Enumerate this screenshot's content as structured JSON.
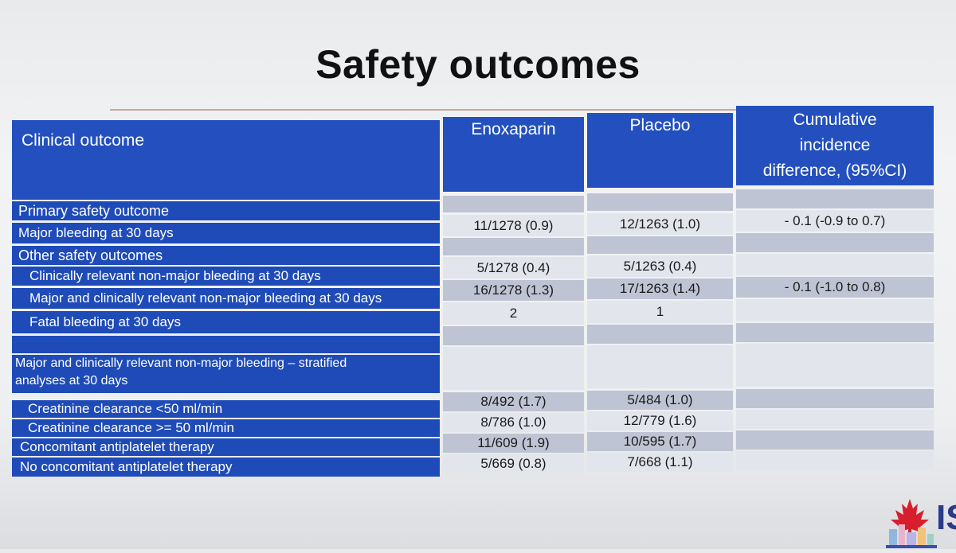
{
  "slide": {
    "title": "Safety outcomes"
  },
  "table": {
    "headers": {
      "outcome": "Clinical outcome",
      "enox": "Enoxaparin",
      "placebo": "Placebo",
      "diff_l1": "Cumulative",
      "diff_l2": "incidence",
      "diff_l3": "difference, (95%CI)"
    },
    "rows": [
      {
        "label": "Primary safety outcome",
        "enox": "",
        "placebo": "",
        "diff": ""
      },
      {
        "label": "Major bleeding at 30 days",
        "enox": "11/1278 (0.9)",
        "placebo": "12/1263 (1.0)",
        "diff": "- 0.1 (-0.9 to 0.7)"
      },
      {
        "label": "Other safety outcomes",
        "enox": "",
        "placebo": "",
        "diff": ""
      },
      {
        "label": "Clinically relevant non-major bleeding at 30 days",
        "enox": "5/1278 (0.4)",
        "placebo": "5/1263 (0.4)",
        "diff": ""
      },
      {
        "label": "Major and clinically relevant non-major bleeding at 30 days",
        "enox": "16/1278 (1.3)",
        "placebo": "17/1263 (1.4)",
        "diff": "- 0.1 (-1.0 to 0.8)"
      },
      {
        "label": "Fatal bleeding at 30 days",
        "enox": "2",
        "placebo": "1",
        "diff": ""
      },
      {
        "label": "",
        "enox": "",
        "placebo": "",
        "diff": ""
      },
      {
        "label_l1": "Major and clinically relevant non-major bleeding – stratified",
        "label_l2": "analyses at 30 days",
        "enox": "",
        "placebo": "",
        "diff": ""
      },
      {
        "label": "Creatinine clearance <50 ml/min",
        "enox": "8/492 (1.7)",
        "placebo": "5/484 (1.0)",
        "diff": ""
      },
      {
        "label": "Creatinine clearance >= 50 ml/min",
        "enox": "8/786 (1.0)",
        "placebo": "12/779 (1.6)",
        "diff": ""
      },
      {
        "label": "Concomitant antiplatelet therapy",
        "enox": "11/609 (1.9)",
        "placebo": "10/595 (1.7)",
        "diff": ""
      },
      {
        "label": "No concomitant antiplatelet therapy",
        "enox": "5/669 (0.8)",
        "placebo": "7/668 (1.1)",
        "diff": ""
      }
    ]
  },
  "logo": {
    "icon": "maple-leaf-icon",
    "text": "IS"
  },
  "colors": {
    "header_blue": "#2350be",
    "row_blue": "#1e4bb8",
    "cell_grey": "#bfc4d4"
  }
}
